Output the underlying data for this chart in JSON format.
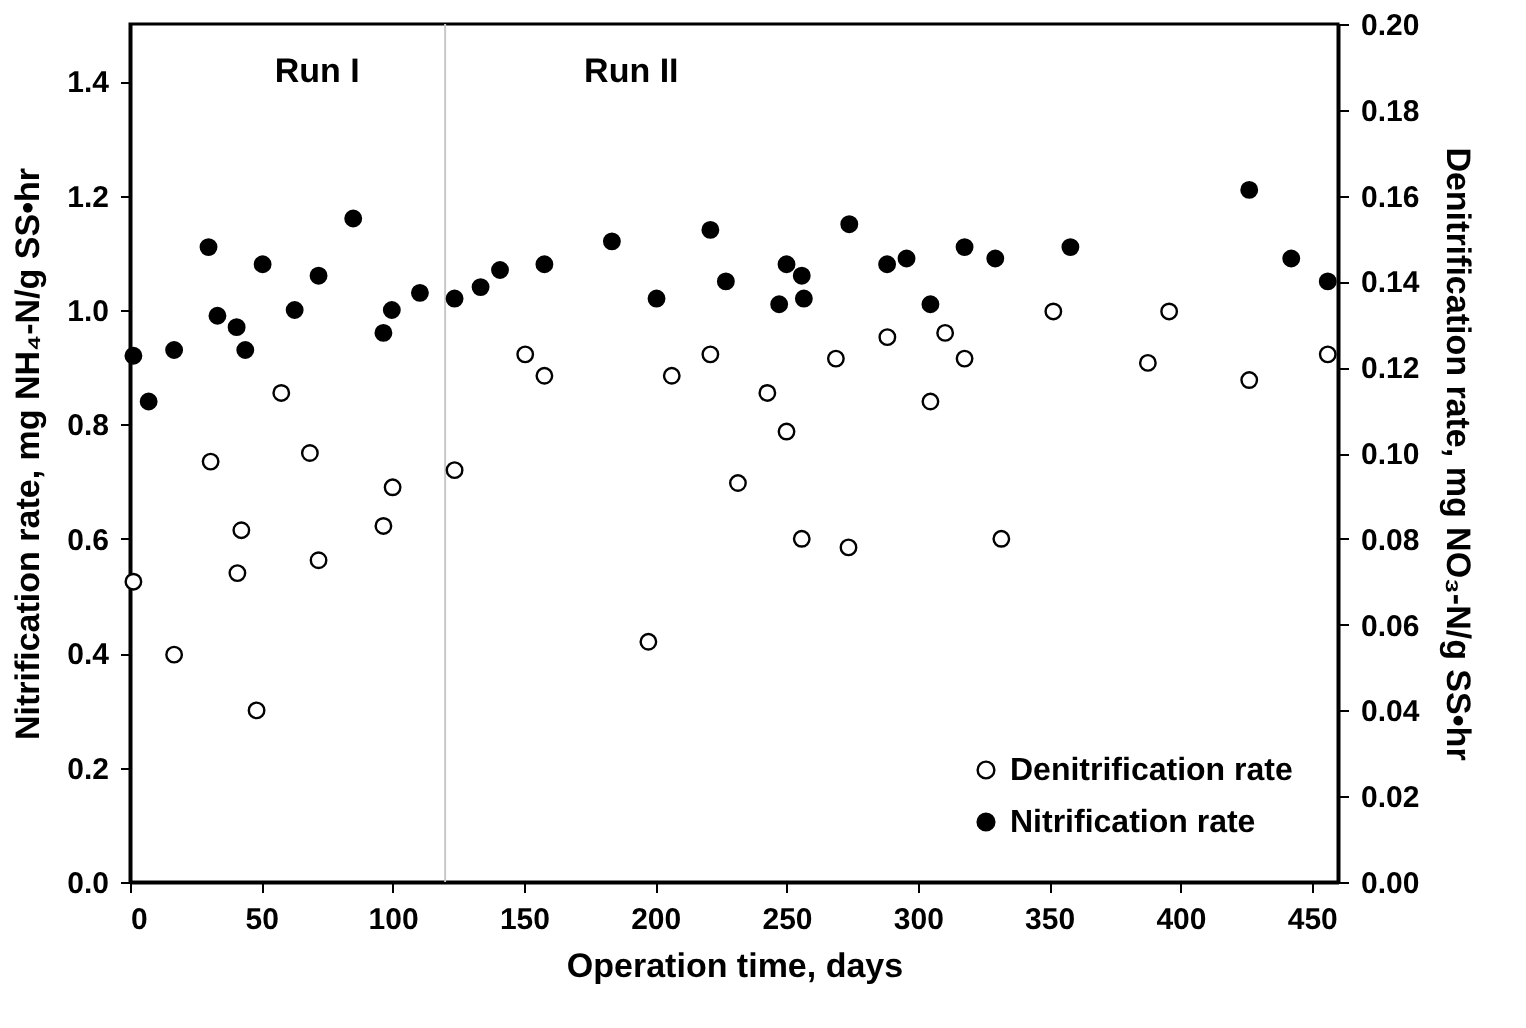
{
  "chart_data": {
    "type": "scatter",
    "xlabel": "Operation time, days",
    "ylabel": "Nitrification rate, mg NH₄-N/g SS•hr",
    "y2label": "Denitrification rate, mg NO₃-N/g SS•hr",
    "xlim": [
      0,
      460
    ],
    "xticks": [
      0,
      50,
      100,
      150,
      200,
      250,
      300,
      350,
      400,
      450
    ],
    "ylim": [
      0,
      1.5
    ],
    "yticks": [
      {
        "value": 0,
        "label": "0.0"
      },
      {
        "value": 0.2,
        "label": "0.2"
      },
      {
        "value": 0.4,
        "label": "0.4"
      },
      {
        "value": 0.6,
        "label": "0.6"
      },
      {
        "value": 0.8,
        "label": "0.8"
      },
      {
        "value": 1,
        "label": "1.0"
      },
      {
        "value": 1.2,
        "label": "1.2"
      },
      {
        "value": 1.4,
        "label": "1.4"
      }
    ],
    "y2lim": [
      0,
      0.2
    ],
    "y2ticks": [
      {
        "value": 0,
        "label": "0.00"
      },
      {
        "value": 0.02,
        "label": "0.02"
      },
      {
        "value": 0.04,
        "label": "0.04"
      },
      {
        "value": 0.06,
        "label": "0.06"
      },
      {
        "value": 0.08,
        "label": "0.08"
      },
      {
        "value": 0.1,
        "label": "0.10"
      },
      {
        "value": 0.12,
        "label": "0.12"
      },
      {
        "value": 0.14,
        "label": "0.14"
      },
      {
        "value": 0.16,
        "label": "0.16"
      },
      {
        "value": 0.18,
        "label": "0.18"
      },
      {
        "value": 0.2,
        "label": "0.20"
      }
    ],
    "marker": "circle",
    "grid": false,
    "legend": "bottom right",
    "ref_lines": [
      {
        "axis": "x",
        "value": 120,
        "label": null,
        "color": "#c8c8c8"
      }
    ],
    "annotations": [
      "Run I",
      "Run II"
    ],
    "series": [
      {
        "name": "Denitrification rate",
        "color": "#ffffff",
        "axis": "y2",
        "x": [
          1.3,
          16.8,
          30.7,
          40.9,
          42.4,
          48.2,
          57.6,
          68.5,
          71.8,
          96.5,
          100,
          123.6,
          150.5,
          157.8,
          197.4,
          206.3,
          221,
          231.5,
          242.7,
          250,
          255.8,
          268.8,
          273.6,
          288.4,
          304.8,
          310.4,
          317.8,
          331.8,
          351.6,
          387.6,
          395.7,
          426.2,
          456.1
        ],
        "values": [
          0.07,
          0.053,
          0.098,
          0.072,
          0.082,
          0.04,
          0.114,
          0.1,
          0.075,
          0.083,
          0.092,
          0.096,
          0.123,
          0.118,
          0.056,
          0.118,
          0.123,
          0.093,
          0.114,
          0.105,
          0.08,
          0.122,
          0.078,
          0.127,
          0.112,
          0.128,
          0.122,
          0.08,
          0.133,
          0.121,
          0.133,
          0.117,
          0.123
        ]
      },
      {
        "name": "Nitrification rate",
        "color": "#000000",
        "x": [
          1.3,
          7.1,
          16.8,
          29.9,
          33.3,
          40.6,
          43.9,
          50.5,
          62.7,
          71.8,
          85,
          96.5,
          99.7,
          110.4,
          123.6,
          133.5,
          140.9,
          157.8,
          183.5,
          200.5,
          221,
          226.9,
          247.2,
          250,
          255.8,
          256.6,
          273.9,
          288.3,
          295.7,
          304.8,
          317.8,
          329.5,
          358.1,
          426.2,
          442.2,
          456.1
        ],
        "values": [
          0.92,
          0.84,
          0.93,
          1.11,
          0.99,
          0.97,
          0.93,
          1.08,
          1.0,
          1.06,
          1.16,
          0.96,
          1.0,
          1.03,
          1.02,
          1.04,
          1.07,
          1.08,
          1.12,
          1.02,
          1.14,
          1.05,
          1.01,
          1.08,
          1.06,
          1.02,
          1.15,
          1.08,
          1.09,
          1.01,
          1.11,
          1.09,
          1.11,
          1.21,
          1.09,
          1.05
        ]
      }
    ]
  }
}
